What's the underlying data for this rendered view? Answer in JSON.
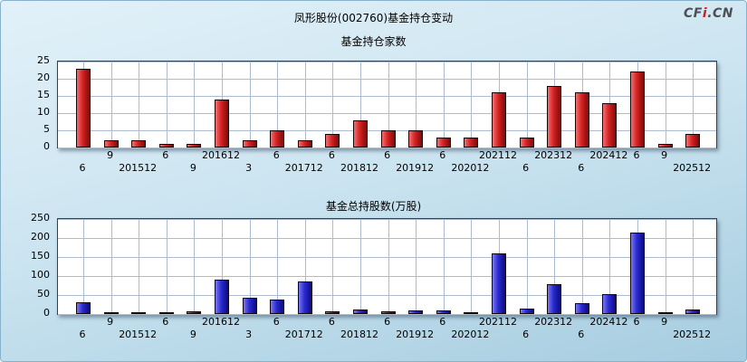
{
  "page": {
    "title": "凤形股份(002760)基金持仓变动",
    "logo": {
      "part1": "CF",
      "part2": "i",
      "part3": ".CN"
    }
  },
  "chart_data": [
    {
      "type": "bar",
      "title": "基金持仓家数",
      "ylabel": "基金持仓家数",
      "ylim": [
        0,
        25
      ],
      "yticks": [
        0,
        5,
        10,
        15,
        20,
        25
      ],
      "grid": true,
      "bar_colors": {
        "light": "#f47070",
        "mid": "#d42222",
        "dark": "#7e0a0a"
      },
      "x_labels": [
        {
          "t": "6",
          "row": 2
        },
        {
          "t": "9",
          "row": 1
        },
        {
          "t": "201512",
          "row": 2
        },
        {
          "t": "6",
          "row": 1
        },
        {
          "t": "9",
          "row": 2
        },
        {
          "t": "201612",
          "row": 1
        },
        {
          "t": "3",
          "row": 2
        },
        {
          "t": "6",
          "row": 1
        },
        {
          "t": "201712",
          "row": 2
        },
        {
          "t": "6",
          "row": 1
        },
        {
          "t": "201812",
          "row": 2
        },
        {
          "t": "6",
          "row": 1
        },
        {
          "t": "201912",
          "row": 2
        },
        {
          "t": "6",
          "row": 1
        },
        {
          "t": "202012",
          "row": 2
        },
        {
          "t": "202112",
          "row": 1
        },
        {
          "t": "6",
          "row": 2
        },
        {
          "t": "202312",
          "row": 1
        },
        {
          "t": "6",
          "row": 2
        },
        {
          "t": "202412",
          "row": 1
        },
        {
          "t": "6",
          "row": 1
        },
        {
          "t": "9",
          "row": 1
        },
        {
          "t": "202512",
          "row": 2
        }
      ],
      "values": [
        23,
        2,
        2,
        1,
        1,
        14,
        2,
        5,
        2,
        4,
        8,
        5,
        5,
        3,
        3,
        16,
        3,
        18,
        16,
        13,
        22,
        1,
        4
      ]
    },
    {
      "type": "bar",
      "title": "基金总持股数(万股)",
      "ylabel": "基金总持股数(万股)",
      "ylim": [
        0,
        250
      ],
      "yticks": [
        0,
        50,
        100,
        150,
        200,
        250
      ],
      "grid": true,
      "bar_colors": {
        "light": "#7878f0",
        "mid": "#2a2ad0",
        "dark": "#0a0a7e"
      },
      "x_labels": [
        {
          "t": "6",
          "row": 2
        },
        {
          "t": "9",
          "row": 1
        },
        {
          "t": "201512",
          "row": 2
        },
        {
          "t": "6",
          "row": 1
        },
        {
          "t": "9",
          "row": 2
        },
        {
          "t": "201612",
          "row": 1
        },
        {
          "t": "3",
          "row": 2
        },
        {
          "t": "6",
          "row": 1
        },
        {
          "t": "201712",
          "row": 2
        },
        {
          "t": "6",
          "row": 1
        },
        {
          "t": "201812",
          "row": 2
        },
        {
          "t": "6",
          "row": 1
        },
        {
          "t": "201912",
          "row": 2
        },
        {
          "t": "6",
          "row": 1
        },
        {
          "t": "202012",
          "row": 2
        },
        {
          "t": "202112",
          "row": 1
        },
        {
          "t": "6",
          "row": 2
        },
        {
          "t": "202312",
          "row": 1
        },
        {
          "t": "6",
          "row": 2
        },
        {
          "t": "202412",
          "row": 1
        },
        {
          "t": "6",
          "row": 1
        },
        {
          "t": "9",
          "row": 1
        },
        {
          "t": "202512",
          "row": 2
        }
      ],
      "values": [
        32,
        2,
        2,
        1,
        8,
        90,
        42,
        38,
        85,
        8,
        12,
        8,
        10,
        10,
        5,
        160,
        15,
        78,
        28,
        52,
        215,
        1,
        13
      ]
    }
  ]
}
